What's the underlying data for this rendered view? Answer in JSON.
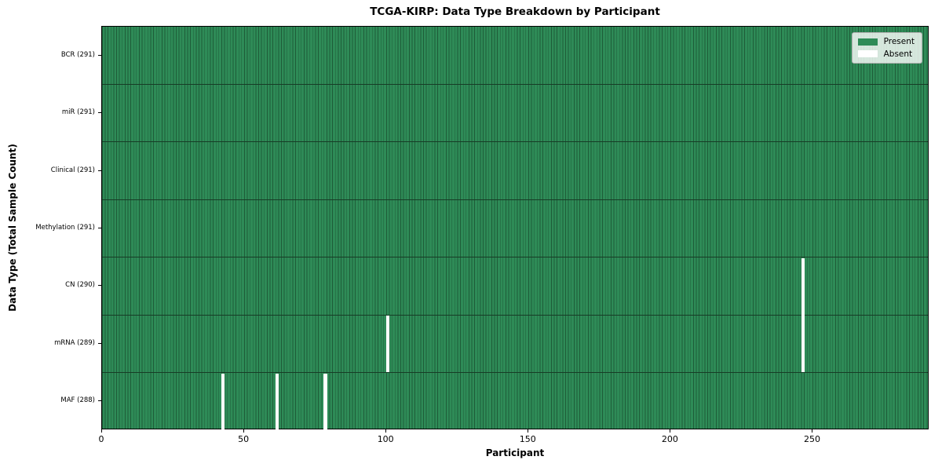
{
  "chart_data": {
    "type": "heatmap",
    "title": "TCGA-KIRP: Data Type Breakdown by Participant",
    "xlabel": "Participant",
    "ylabel": "Data Type (Total Sample Count)",
    "n_participants": 291,
    "x_ticks": [
      0,
      50,
      100,
      150,
      200,
      250
    ],
    "xlim": [
      0,
      291
    ],
    "grid": false,
    "legend_position": "upper right",
    "legend": [
      {
        "label": "Present",
        "color": "#2e8b57"
      },
      {
        "label": "Absent",
        "color": "#ffffff"
      }
    ],
    "rows": [
      {
        "label": "BCR (291)",
        "total_samples": 291,
        "absent_participants": []
      },
      {
        "label": "miR (291)",
        "total_samples": 291,
        "absent_participants": []
      },
      {
        "label": "Clinical (291)",
        "total_samples": 291,
        "absent_participants": []
      },
      {
        "label": "Methylation (291)",
        "total_samples": 291,
        "absent_participants": []
      },
      {
        "label": "CN (290)",
        "total_samples": 290,
        "absent_participants": [
          246
        ]
      },
      {
        "label": "mRNA (289)",
        "total_samples": 289,
        "absent_participants": [
          100,
          246
        ]
      },
      {
        "label": "MAF (288)",
        "total_samples": 288,
        "absent_participants": [
          42,
          61,
          78
        ]
      }
    ],
    "colors": {
      "present": "#2e8b57",
      "absent": "#ffffff",
      "cell_edge": "#1e5c38",
      "row_separator": "#173c26",
      "spine": "#000000",
      "legend_border": "#b0b0b0"
    }
  }
}
